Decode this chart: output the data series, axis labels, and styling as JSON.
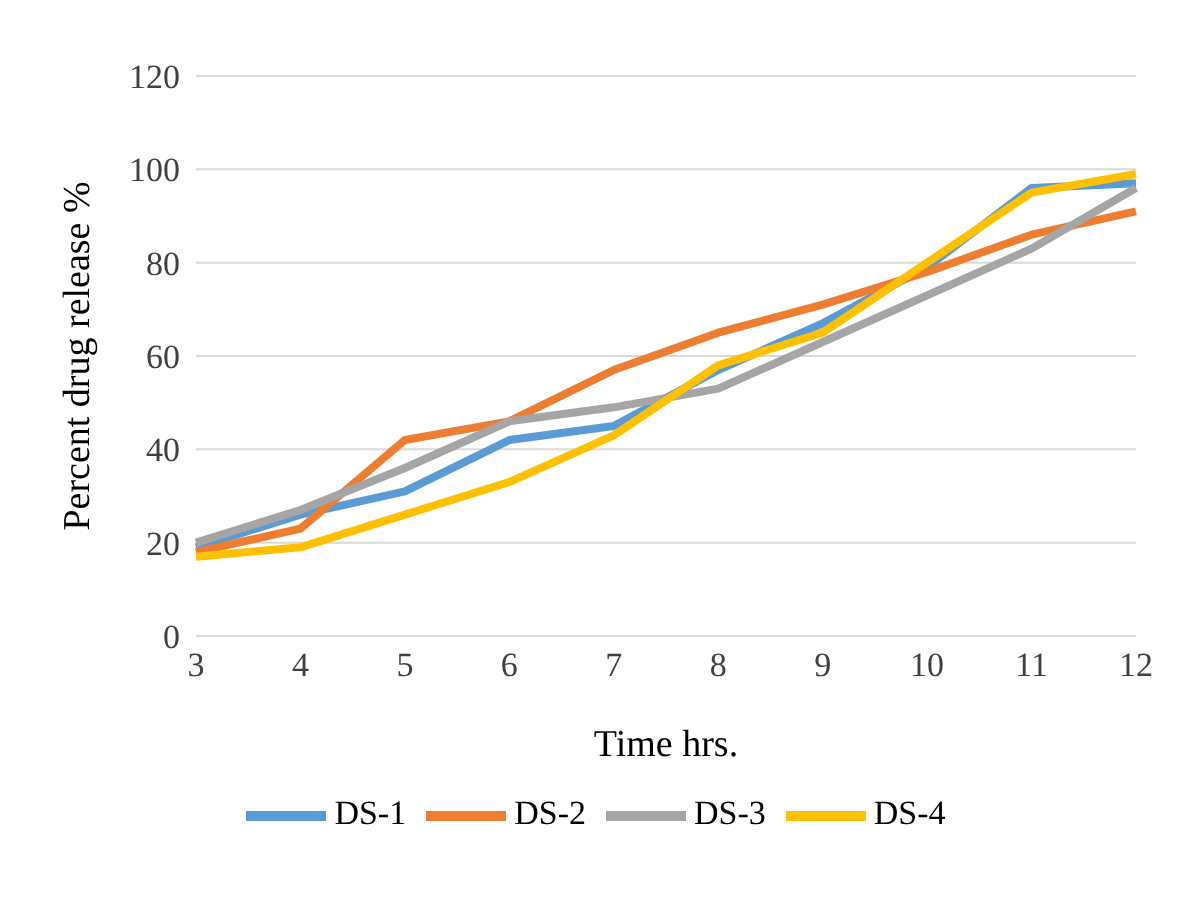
{
  "chart_data": {
    "type": "line",
    "xlabel": "Time hrs.",
    "ylabel": "Percent drug release %",
    "categories": [
      "3",
      "4",
      "5",
      "6",
      "7",
      "8",
      "9",
      "10",
      "11",
      "12"
    ],
    "series": [
      {
        "name": "DS-1",
        "color": "#5b9bd5",
        "values": [
          19,
          26,
          31,
          42,
          45,
          57,
          67,
          79,
          96,
          97
        ]
      },
      {
        "name": "DS-2",
        "color": "#ed7d31",
        "values": [
          18,
          23,
          42,
          46,
          57,
          65,
          71,
          78,
          86,
          91
        ]
      },
      {
        "name": "DS-3",
        "color": "#a5a5a5",
        "values": [
          20,
          27,
          36,
          46,
          49,
          53,
          63,
          73,
          83,
          96
        ]
      },
      {
        "name": "DS-4",
        "color": "#ffc000",
        "values": [
          17,
          19,
          26,
          33,
          43,
          58,
          65,
          80,
          95,
          99
        ]
      }
    ],
    "ylim": [
      0,
      120
    ],
    "yticks": [
      0,
      20,
      40,
      60,
      80,
      100,
      120
    ],
    "grid": "y",
    "legend": "bottom",
    "marker": "none",
    "line_style": "solid"
  }
}
